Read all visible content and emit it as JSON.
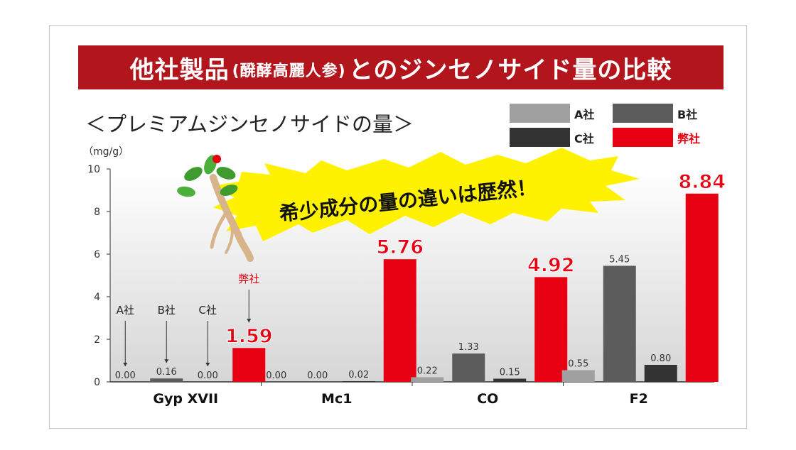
{
  "banner": {
    "title_main": "他社製品",
    "title_paren": "(醗酵高麗人参)",
    "title_rest": "とのジンセノサイド量の比較"
  },
  "subtitle": "＜プレミアムジンセノサイドの量＞",
  "unit": "（mg/g）",
  "callout": "希少成分の量の違いは歴然！",
  "colors": {
    "banner": "#b3151c",
    "A": "#a0a0a0",
    "B": "#5c5c5c",
    "C": "#333333",
    "ours": "#e60012",
    "burst": "#fff200"
  },
  "legend": [
    {
      "label": "A社",
      "key": "A"
    },
    {
      "label": "B社",
      "key": "B"
    },
    {
      "label": "C社",
      "key": "C"
    },
    {
      "label": "弊社",
      "key": "ours"
    }
  ],
  "annotations": {
    "A": "A社",
    "B": "B社",
    "C": "C社",
    "ours": "弊社"
  },
  "chart_data": {
    "type": "bar",
    "categories": [
      "Gyp XVII",
      "Mc1",
      "CO",
      "F2"
    ],
    "series": [
      {
        "name": "A社",
        "values": [
          0.0,
          0.0,
          0.22,
          0.55
        ],
        "labels": [
          "0.00",
          "0.00",
          "0.22",
          "0.55"
        ]
      },
      {
        "name": "B社",
        "values": [
          0.16,
          0.0,
          1.33,
          5.45
        ],
        "labels": [
          "0.16",
          "0.00",
          "1.33",
          "5.45"
        ]
      },
      {
        "name": "C社",
        "values": [
          0.0,
          0.02,
          0.15,
          0.8
        ],
        "labels": [
          "0.00",
          "0.02",
          "0.15",
          "0.80"
        ]
      },
      {
        "name": "弊社",
        "values": [
          1.59,
          5.76,
          4.92,
          8.84
        ],
        "labels": [
          "1.59",
          "5.76",
          "4.92",
          "8.84"
        ]
      }
    ],
    "yticks": [
      "0",
      "2",
      "4",
      "6",
      "8",
      "10"
    ],
    "ylim": [
      0,
      10
    ],
    "ylabel": "（mg/g）",
    "grid": false
  }
}
